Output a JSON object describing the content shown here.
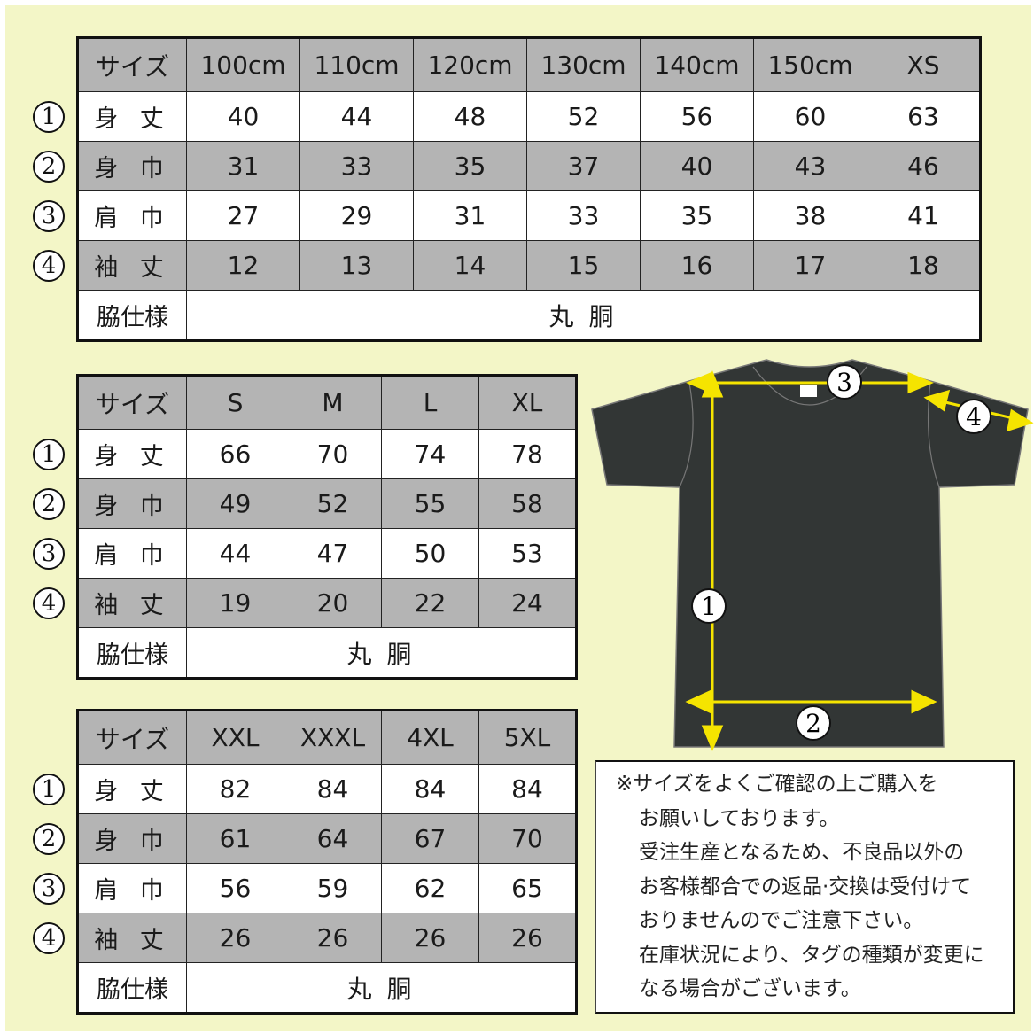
{
  "row_labels": [
    "身 丈",
    "身 巾",
    "肩 巾",
    "袖 丈"
  ],
  "header_label": "サイズ",
  "side_label": "脇仕様",
  "side_value": "丸 胴",
  "markers": [
    "1",
    "2",
    "3",
    "4"
  ],
  "tables": [
    {
      "sizes": [
        "100cm",
        "110cm",
        "120cm",
        "130cm",
        "140cm",
        "150cm",
        "XS"
      ],
      "rows": [
        [
          "40",
          "44",
          "48",
          "52",
          "56",
          "60",
          "63"
        ],
        [
          "31",
          "33",
          "35",
          "37",
          "40",
          "43",
          "46"
        ],
        [
          "27",
          "29",
          "31",
          "33",
          "35",
          "38",
          "41"
        ],
        [
          "12",
          "13",
          "14",
          "15",
          "16",
          "17",
          "18"
        ]
      ]
    },
    {
      "sizes": [
        "S",
        "M",
        "L",
        "XL"
      ],
      "rows": [
        [
          "66",
          "70",
          "74",
          "78"
        ],
        [
          "49",
          "52",
          "55",
          "58"
        ],
        [
          "44",
          "47",
          "50",
          "53"
        ],
        [
          "19",
          "20",
          "22",
          "24"
        ]
      ]
    },
    {
      "sizes": [
        "XXL",
        "XXXL",
        "4XL",
        "5XL"
      ],
      "rows": [
        [
          "82",
          "84",
          "84",
          "84"
        ],
        [
          "61",
          "64",
          "67",
          "70"
        ],
        [
          "56",
          "59",
          "62",
          "65"
        ],
        [
          "26",
          "26",
          "26",
          "26"
        ]
      ]
    }
  ],
  "note": [
    "※サイズをよくご確認の上ご購入を",
    "お願いしております。",
    "受注生産となるため、不良品以外の",
    "お客様都合での返品·交換は受付けて",
    "おりませんのでご注意下さい。",
    "在庫状況により、タグの種類が変更に",
    "なる場合がございます。"
  ],
  "colors": {
    "background": "#f3f6c7",
    "row_shade": "#b4b4b4",
    "shirt": "#323635",
    "arrow": "#f5e400"
  }
}
